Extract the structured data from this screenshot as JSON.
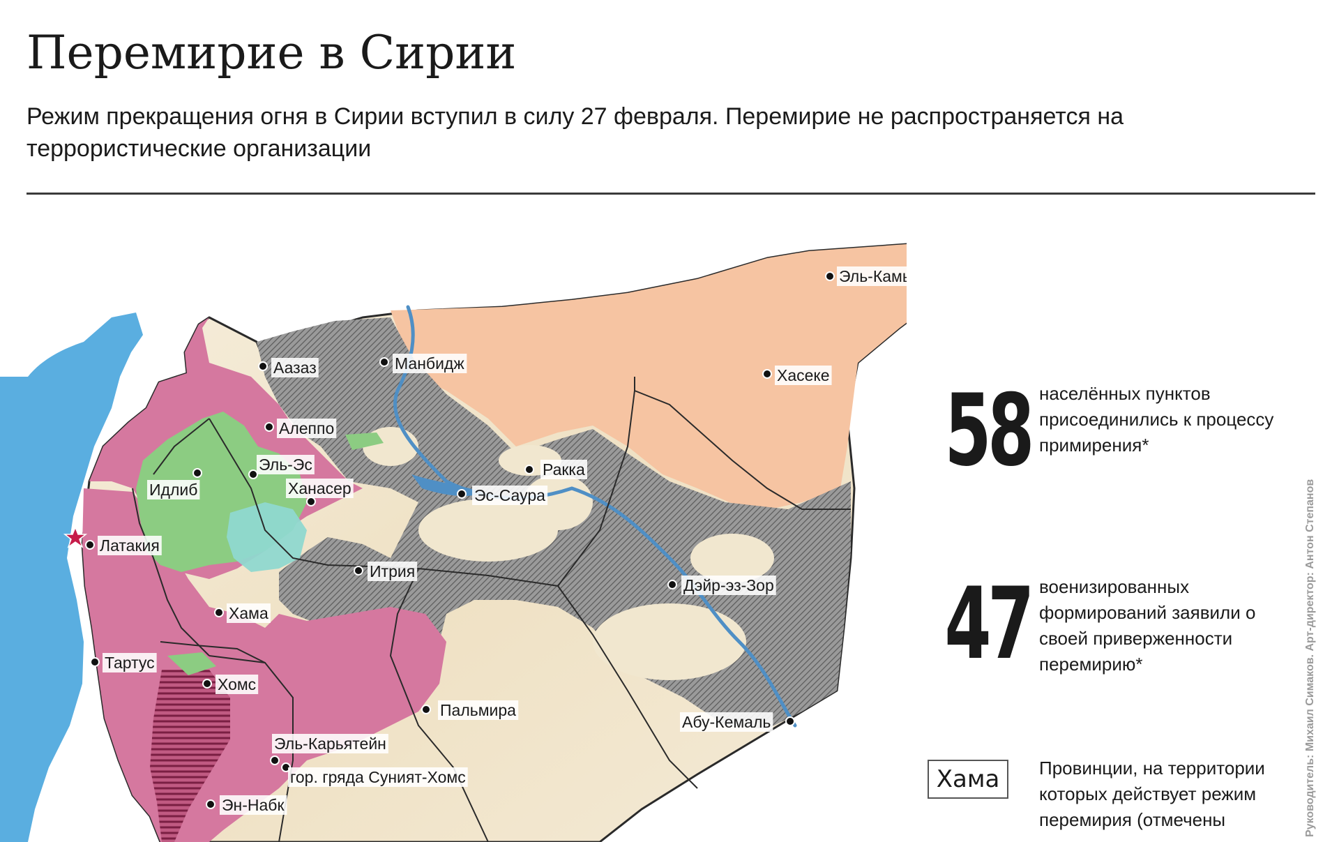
{
  "header": {
    "title": "Перемирие в Сирии",
    "subtitle": "Режим прекращения огня в Сирии вступил в силу 27 февраля. Перемирие не распространяется на террористические организации"
  },
  "map": {
    "cities": [
      {
        "name": "Эль-Камышлы"
      },
      {
        "name": "Аазаз"
      },
      {
        "name": "Манбидж"
      },
      {
        "name": "Хасеке"
      },
      {
        "name": "Алеппо"
      },
      {
        "name": "Эль-Эс"
      },
      {
        "name": "Идлиб"
      },
      {
        "name": "Ханасер"
      },
      {
        "name": "Ракка"
      },
      {
        "name": "Эс-Саура"
      },
      {
        "name": "Латакия"
      },
      {
        "name": "Итрия"
      },
      {
        "name": "Дэйр-эз-Зор"
      },
      {
        "name": "Хама"
      },
      {
        "name": "Тартус"
      },
      {
        "name": "Хомс"
      },
      {
        "name": "Пальмира"
      },
      {
        "name": "Абу-Кемаль"
      },
      {
        "name": "Эль-Карьятейн"
      },
      {
        "name": "гор. гряда Суният-Хомс"
      },
      {
        "name": "Эн-Набк"
      }
    ],
    "colors": {
      "sea": "#5aaee0",
      "government": "#d5789f",
      "kurds": "#f6c4a2",
      "isis_hatch": "#6b6b6b",
      "opposition": "#8ccc82",
      "nusra": "#8fd8cf",
      "desert": "#f1e7cf"
    }
  },
  "stats": [
    {
      "number": "58",
      "text": "населённых пунктов присоединились к процессу примирения*"
    },
    {
      "number": "47",
      "text": "военизированных формирований заявили о своей приверженности перемирию*"
    }
  ],
  "legend": {
    "box_label": "Хама",
    "text": "Провинции, на территории которых действует режим перемирия (отмечены"
  },
  "credits": "Руководитель: Михаил Симаков. Арт-директор: Антон Степанов"
}
